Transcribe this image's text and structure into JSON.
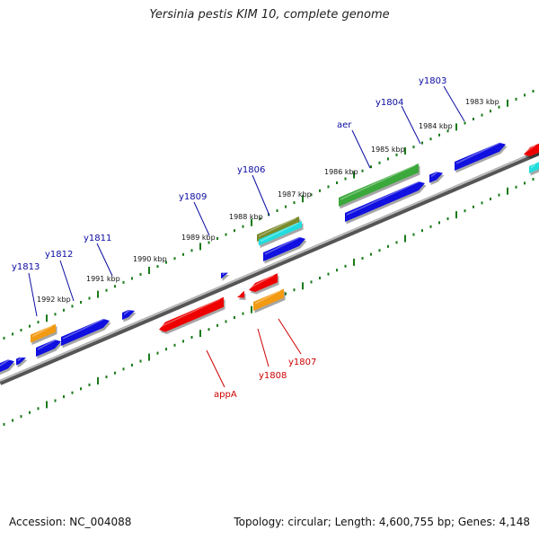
{
  "title": "Yersinia pestis KIM 10, complete genome",
  "footer": {
    "accession": "Accession: NC_004088",
    "summary": "Topology: circular; Length: 4,600,755 bp; Genes: 4,148"
  },
  "colors": {
    "blue": "#1010e0",
    "red": "#ee0000",
    "orange": "#f29a12",
    "green": "#3aa83a",
    "olive": "#7a8a2a",
    "cyan": "#22dddd",
    "tick": "#1a7a1a",
    "backbone": "#888888",
    "label_blue": "#0a0aa0",
    "label_red": "#cc0000"
  },
  "kbp_labels": [
    "1992 kbp",
    "1991 kbp",
    "1990 kbp",
    "1989 kbp",
    "1988 kbp",
    "1987 kbp",
    "1986 kbp",
    "1985 kbp",
    "1984 kbp",
    "1983 kbp"
  ],
  "upper_genes": [
    "y1813",
    "y1812",
    "y1811",
    "y1809",
    "y1806",
    "aer",
    "y1804",
    "y1803"
  ],
  "lower_genes": [
    "appA",
    "y1808",
    "y1807"
  ]
}
